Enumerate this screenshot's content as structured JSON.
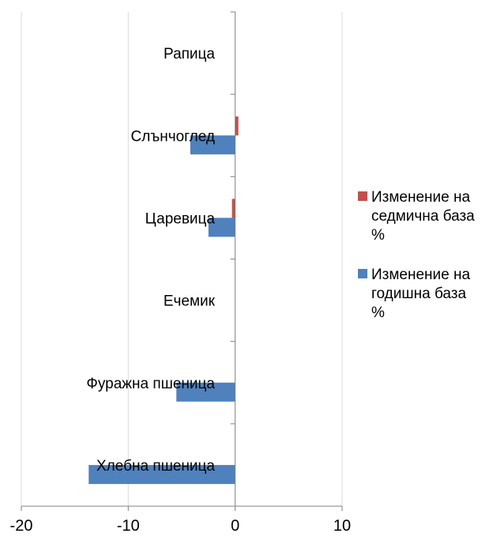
{
  "chart_data": {
    "type": "bar",
    "orientation": "horizontal",
    "categories": [
      "Рапица",
      "Слънчоглед",
      "Царевица",
      "Ечемик",
      "Фуражна пшеница",
      "Хлебна пшеница"
    ],
    "series": [
      {
        "name": "Изменение на седмична база %",
        "color": "#c0504d",
        "values": [
          0,
          0.3,
          -0.3,
          0,
          0,
          0
        ]
      },
      {
        "name": "Изменение на годишна база %",
        "color": "#4f81bd",
        "values": [
          0,
          -4.2,
          -2.5,
          0,
          -5.5,
          -13.7
        ]
      }
    ],
    "xlim": [
      -20,
      10
    ],
    "xticks": [
      -20,
      -10,
      0,
      10
    ],
    "grid": "vertical",
    "legend_position": "right",
    "legend_lines": [
      [
        "Изменение на",
        "седмична база",
        "%"
      ],
      [
        "Изменение на",
        "годишна база",
        "%"
      ]
    ]
  }
}
